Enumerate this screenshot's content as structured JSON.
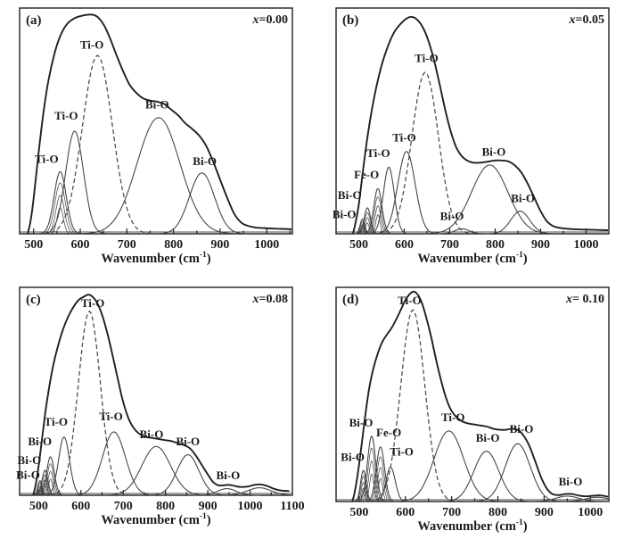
{
  "figure": {
    "description": "Deconvoluted FTIR absorption spectra, four panels",
    "colors": {
      "envelope": "#1f1f1f",
      "component": "#3f3f3f",
      "dashed_component": "#4a4a4a",
      "text": "#1a1a1a",
      "background": "#ffffff"
    }
  },
  "chart_data": [
    {
      "type": "line",
      "panel_label": "(a)",
      "composition": {
        "var": "x",
        "rest": "=0.00"
      },
      "xlabel_parts": {
        "pre": "Wavenumber (cm",
        "sup": "-1",
        "post": ")"
      },
      "xticks": [
        500,
        600,
        700,
        800,
        900,
        1000
      ],
      "xrange": [
        470,
        1055
      ],
      "ylim": [
        0,
        1
      ],
      "envelope": [
        [
          487,
          0
        ],
        [
          492,
          0.04
        ],
        [
          498,
          0.12
        ],
        [
          505,
          0.25
        ],
        [
          513,
          0.4
        ],
        [
          522,
          0.55
        ],
        [
          532,
          0.68
        ],
        [
          545,
          0.8
        ],
        [
          558,
          0.88
        ],
        [
          572,
          0.93
        ],
        [
          588,
          0.955
        ],
        [
          602,
          0.965
        ],
        [
          615,
          0.97
        ],
        [
          628,
          0.97
        ],
        [
          640,
          0.955
        ],
        [
          652,
          0.92
        ],
        [
          665,
          0.86
        ],
        [
          678,
          0.79
        ],
        [
          692,
          0.72
        ],
        [
          706,
          0.66
        ],
        [
          720,
          0.625
        ],
        [
          735,
          0.6
        ],
        [
          750,
          0.59
        ],
        [
          765,
          0.585
        ],
        [
          780,
          0.575
        ],
        [
          795,
          0.55
        ],
        [
          810,
          0.525
        ],
        [
          825,
          0.49
        ],
        [
          840,
          0.465
        ],
        [
          855,
          0.435
        ],
        [
          870,
          0.39
        ],
        [
          885,
          0.32
        ],
        [
          900,
          0.24
        ],
        [
          915,
          0.16
        ],
        [
          930,
          0.09
        ],
        [
          945,
          0.05
        ],
        [
          960,
          0.035
        ],
        [
          980,
          0.027
        ],
        [
          1005,
          0.024
        ],
        [
          1030,
          0.022
        ],
        [
          1053,
          0.02
        ]
      ],
      "peaks": [
        {
          "label": "Ti-O",
          "center": 557,
          "sigma": 13,
          "height": 0.275,
          "hatched": true,
          "label_x": 528,
          "label_y": 0.315
        },
        {
          "label": "Ti-O",
          "center": 588,
          "sigma": 19,
          "height": 0.455,
          "label_x": 570,
          "label_y": 0.505
        },
        {
          "label": "Ti-O",
          "center": 637,
          "sigma": 32,
          "height": 0.79,
          "dashed": true,
          "label_x": 625,
          "label_y": 0.82
        },
        {
          "label": "Bi-O",
          "center": 768,
          "sigma": 46,
          "height": 0.515,
          "label_x": 765,
          "label_y": 0.555
        },
        {
          "label": "Bi-O",
          "center": 861,
          "sigma": 27,
          "height": 0.27,
          "label_x": 867,
          "label_y": 0.305
        }
      ]
    },
    {
      "type": "line",
      "panel_label": "(b)",
      "composition": {
        "var": "x",
        "rest": "=0.05"
      },
      "xlabel_parts": {
        "pre": "Wavenumber  (cm",
        "sup": "-1",
        "post": ")"
      },
      "xticks": [
        500,
        600,
        700,
        800,
        900,
        1000
      ],
      "xrange": [
        450,
        1050
      ],
      "ylim": [
        0,
        1
      ],
      "envelope": [
        [
          487,
          0
        ],
        [
          493,
          0.05
        ],
        [
          500,
          0.13
        ],
        [
          508,
          0.26
        ],
        [
          517,
          0.4
        ],
        [
          527,
          0.53
        ],
        [
          538,
          0.645
        ],
        [
          550,
          0.745
        ],
        [
          563,
          0.825
        ],
        [
          577,
          0.89
        ],
        [
          592,
          0.93
        ],
        [
          606,
          0.955
        ],
        [
          618,
          0.96
        ],
        [
          630,
          0.945
        ],
        [
          642,
          0.91
        ],
        [
          654,
          0.85
        ],
        [
          666,
          0.765
        ],
        [
          678,
          0.66
        ],
        [
          690,
          0.55
        ],
        [
          702,
          0.455
        ],
        [
          714,
          0.385
        ],
        [
          726,
          0.345
        ],
        [
          738,
          0.325
        ],
        [
          752,
          0.315
        ],
        [
          768,
          0.315
        ],
        [
          785,
          0.32
        ],
        [
          800,
          0.325
        ],
        [
          815,
          0.325
        ],
        [
          830,
          0.32
        ],
        [
          845,
          0.3
        ],
        [
          858,
          0.27
        ],
        [
          872,
          0.22
        ],
        [
          886,
          0.16
        ],
        [
          900,
          0.1
        ],
        [
          914,
          0.055
        ],
        [
          930,
          0.032
        ],
        [
          950,
          0.024
        ],
        [
          975,
          0.02
        ],
        [
          1010,
          0.018
        ],
        [
          1048,
          0.016
        ]
      ],
      "peaks": [
        {
          "label": "Bi-O",
          "center": 508,
          "sigma": 5,
          "height": 0.065,
          "hatched": true,
          "label_x": 468,
          "label_y": 0.07
        },
        {
          "label": "Bi-O",
          "center": 519,
          "sigma": 7,
          "height": 0.115,
          "hatched": true,
          "label_x": 480,
          "label_y": 0.155
        },
        {
          "label": "Fe-O",
          "center": 542,
          "sigma": 9,
          "height": 0.2,
          "hatched": true,
          "label_x": 517,
          "label_y": 0.245
        },
        {
          "label": "Ti-O",
          "center": 566,
          "sigma": 12,
          "height": 0.295,
          "label_x": 543,
          "label_y": 0.34
        },
        {
          "label": "Ti-O",
          "center": 605,
          "sigma": 19,
          "height": 0.365,
          "label_x": 600,
          "label_y": 0.41
        },
        {
          "label": "Ti-O",
          "center": 646,
          "sigma": 29,
          "height": 0.715,
          "dashed": true,
          "label_x": 649,
          "label_y": 0.76
        },
        {
          "label": "Bi-O",
          "center": 727,
          "sigma": 16,
          "height": 0.022,
          "label_x": 705,
          "label_y": 0.062
        },
        {
          "label": "Bi-O",
          "center": 788,
          "sigma": 40,
          "height": 0.305,
          "label_x": 797,
          "label_y": 0.345
        },
        {
          "label": "Bi-O",
          "center": 855,
          "sigma": 21,
          "height": 0.1,
          "label_x": 861,
          "label_y": 0.14
        }
      ]
    },
    {
      "type": "line",
      "panel_label": "(c)",
      "composition": {
        "var": "x",
        "rest": "=0.08"
      },
      "xlabel_parts": {
        "pre": "Wavenumber (cm",
        "sup": "-1",
        "post": ")"
      },
      "xticks": [
        500,
        600,
        700,
        800,
        900,
        1000,
        1100
      ],
      "xrange": [
        455,
        1100
      ],
      "ylim": [
        0,
        1
      ],
      "envelope": [
        [
          487,
          0
        ],
        [
          493,
          0.05
        ],
        [
          500,
          0.14
        ],
        [
          508,
          0.27
        ],
        [
          516,
          0.4
        ],
        [
          525,
          0.52
        ],
        [
          535,
          0.63
        ],
        [
          546,
          0.72
        ],
        [
          558,
          0.8
        ],
        [
          570,
          0.86
        ],
        [
          582,
          0.905
        ],
        [
          595,
          0.94
        ],
        [
          607,
          0.955
        ],
        [
          618,
          0.965
        ],
        [
          630,
          0.95
        ],
        [
          641,
          0.915
        ],
        [
          652,
          0.855
        ],
        [
          663,
          0.775
        ],
        [
          674,
          0.68
        ],
        [
          685,
          0.58
        ],
        [
          696,
          0.48
        ],
        [
          707,
          0.4
        ],
        [
          718,
          0.345
        ],
        [
          730,
          0.31
        ],
        [
          742,
          0.29
        ],
        [
          755,
          0.28
        ],
        [
          770,
          0.275
        ],
        [
          785,
          0.27
        ],
        [
          800,
          0.265
        ],
        [
          815,
          0.26
        ],
        [
          830,
          0.25
        ],
        [
          845,
          0.24
        ],
        [
          858,
          0.225
        ],
        [
          872,
          0.19
        ],
        [
          886,
          0.145
        ],
        [
          900,
          0.1
        ],
        [
          912,
          0.065
        ],
        [
          925,
          0.048
        ],
        [
          938,
          0.048
        ],
        [
          950,
          0.05
        ],
        [
          963,
          0.045
        ],
        [
          978,
          0.04
        ],
        [
          995,
          0.042
        ],
        [
          1010,
          0.05
        ],
        [
          1025,
          0.052
        ],
        [
          1040,
          0.045
        ],
        [
          1055,
          0.032
        ],
        [
          1070,
          0.024
        ],
        [
          1093,
          0.02
        ]
      ],
      "peaks": [
        {
          "label": "Bi-O",
          "center": 503,
          "sigma": 5,
          "height": 0.07,
          "hatched": true,
          "label_x": 475,
          "label_y": 0.08
        },
        {
          "label": "Bi-O",
          "center": 515,
          "sigma": 7,
          "height": 0.12,
          "hatched": true,
          "label_x": 478,
          "label_y": 0.15
        },
        {
          "label": "Bi-O",
          "center": 528,
          "sigma": 9,
          "height": 0.185,
          "hatched": true,
          "label_x": 503,
          "label_y": 0.24
        },
        {
          "label": "Ti-O",
          "center": 560,
          "sigma": 13,
          "height": 0.28,
          "label_x": 541,
          "label_y": 0.335
        },
        {
          "label": "Ti-O",
          "center": 620,
          "sigma": 26,
          "height": 0.885,
          "dashed": true,
          "label_x": 628,
          "label_y": 0.905
        },
        {
          "label": "Ti-O",
          "center": 678,
          "sigma": 27,
          "height": 0.305,
          "label_x": 671,
          "label_y": 0.36
        },
        {
          "label": "Bi-O",
          "center": 778,
          "sigma": 34,
          "height": 0.235,
          "label_x": 767,
          "label_y": 0.275
        },
        {
          "label": "Bi-O",
          "center": 853,
          "sigma": 26,
          "height": 0.195,
          "label_x": 853,
          "label_y": 0.24
        },
        {
          "label": "Bi-O",
          "center": 945,
          "sigma": 22,
          "height": 0.032,
          "label_x": 948,
          "label_y": 0.078
        },
        {
          "label": "",
          "center": 1022,
          "sigma": 28,
          "height": 0.036
        }
      ]
    },
    {
      "type": "line",
      "panel_label": "(d)",
      "composition": {
        "var": "x",
        "rest": "= 0.10"
      },
      "xlabel_parts": {
        "pre": "Wavenumber (cm",
        "sup": "-1",
        "post": ")"
      },
      "xticks": [
        500,
        600,
        700,
        800,
        900,
        1000
      ],
      "xrange": [
        450,
        1040
      ],
      "ylim": [
        0,
        1
      ],
      "envelope": [
        [
          485,
          0
        ],
        [
          490,
          0.04
        ],
        [
          497,
          0.13
        ],
        [
          505,
          0.26
        ],
        [
          513,
          0.4
        ],
        [
          521,
          0.52
        ],
        [
          530,
          0.615
        ],
        [
          540,
          0.69
        ],
        [
          550,
          0.745
        ],
        [
          560,
          0.78
        ],
        [
          570,
          0.81
        ],
        [
          580,
          0.85
        ],
        [
          590,
          0.895
        ],
        [
          600,
          0.94
        ],
        [
          610,
          0.97
        ],
        [
          618,
          0.98
        ],
        [
          627,
          0.965
        ],
        [
          636,
          0.925
        ],
        [
          645,
          0.86
        ],
        [
          655,
          0.775
        ],
        [
          665,
          0.675
        ],
        [
          676,
          0.575
        ],
        [
          687,
          0.49
        ],
        [
          698,
          0.43
        ],
        [
          710,
          0.395
        ],
        [
          722,
          0.375
        ],
        [
          735,
          0.365
        ],
        [
          748,
          0.36
        ],
        [
          762,
          0.355
        ],
        [
          776,
          0.35
        ],
        [
          790,
          0.34
        ],
        [
          804,
          0.335
        ],
        [
          818,
          0.335
        ],
        [
          832,
          0.34
        ],
        [
          846,
          0.33
        ],
        [
          858,
          0.3
        ],
        [
          870,
          0.25
        ],
        [
          882,
          0.18
        ],
        [
          894,
          0.11
        ],
        [
          906,
          0.06
        ],
        [
          918,
          0.035
        ],
        [
          932,
          0.03
        ],
        [
          946,
          0.035
        ],
        [
          960,
          0.035
        ],
        [
          975,
          0.028
        ],
        [
          992,
          0.024
        ],
        [
          1010,
          0.028
        ],
        [
          1025,
          0.028
        ],
        [
          1038,
          0.022
        ]
      ],
      "peaks": [
        {
          "label": "Bi-O",
          "center": 509,
          "sigma": 6,
          "height": 0.145,
          "hatched": true,
          "label_x": 486,
          "label_y": 0.19
        },
        {
          "label": "Bi-O",
          "center": 527,
          "sigma": 9,
          "height": 0.305,
          "hatched": true,
          "label_x": 504,
          "label_y": 0.35
        },
        {
          "label": "Fe-O",
          "center": 546,
          "sigma": 9,
          "height": 0.255,
          "hatched": true,
          "label_x": 564,
          "label_y": 0.305
        },
        {
          "label": "Ti-O",
          "center": 568,
          "sigma": 10,
          "height": 0.16,
          "label_x": 592,
          "label_y": 0.215
        },
        {
          "label": "Ti-O",
          "center": 616,
          "sigma": 26,
          "height": 0.895,
          "dashed": true,
          "label_x": 609,
          "label_y": 0.92
        },
        {
          "label": "Ti-O",
          "center": 694,
          "sigma": 32,
          "height": 0.33,
          "label_x": 703,
          "label_y": 0.375
        },
        {
          "label": "Bi-O",
          "center": 775,
          "sigma": 27,
          "height": 0.235,
          "label_x": 778,
          "label_y": 0.28
        },
        {
          "label": "Bi-O",
          "center": 843,
          "sigma": 27,
          "height": 0.27,
          "label_x": 851,
          "label_y": 0.32
        },
        {
          "label": "Bi-O",
          "center": 950,
          "sigma": 25,
          "height": 0.025,
          "label_x": 957,
          "label_y": 0.075
        },
        {
          "label": "",
          "center": 1015,
          "sigma": 25,
          "height": 0.02
        }
      ]
    }
  ]
}
